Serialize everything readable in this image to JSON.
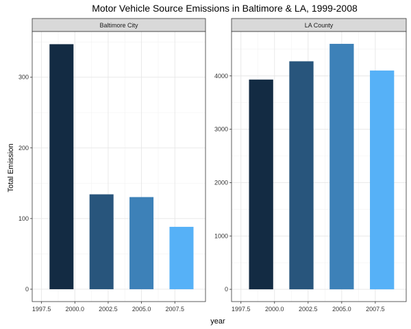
{
  "chart_data": {
    "type": "bar",
    "title": "Motor Vehicle Source Emissions in Baltimore & LA, 1999-2008",
    "xlabel": "year",
    "ylabel": "Total Emission",
    "x_ticks": [
      "1997.5",
      "2000.0",
      "2002.5",
      "2005.0",
      "2007.5"
    ],
    "x_range": [
      1996.8,
      2009.8
    ],
    "bar_width": 1.8,
    "bar_colors": [
      "#132b43",
      "#28557c",
      "#3d81b8",
      "#56b1f7"
    ],
    "panel_fill": "#ffffff",
    "strip_fill": "#d9d9d9",
    "grid": true,
    "panels": [
      {
        "label": "Baltimore City",
        "x": [
          1999,
          2002,
          2005,
          2008
        ],
        "values": [
          346.8,
          134.3,
          130.4,
          88.3
        ],
        "ylim": [
          -17.5,
          364.7
        ],
        "y_ticks": [
          0,
          100,
          200,
          300
        ]
      },
      {
        "label": "LA County",
        "x": [
          1999,
          2002,
          2005,
          2008
        ],
        "values": [
          3931.1,
          4274.0,
          4601.4,
          4101.3
        ],
        "ylim": [
          -230,
          4832
        ],
        "y_ticks": [
          0,
          1000,
          2000,
          3000,
          4000
        ]
      }
    ]
  }
}
